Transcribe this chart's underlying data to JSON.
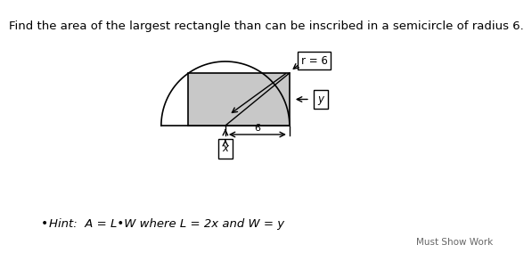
{
  "title": "Find the area of the largest rectangle than can be inscribed in a semicircle of radius 6.",
  "title_fontsize": 9.5,
  "hint_text": "Hint:  A = L•W where L = 2x and W = y",
  "hint_fontsize": 9.5,
  "watermark": "Must Show Work",
  "watermark_fontsize": 7.5,
  "background_color": "#ffffff",
  "rect_fill": "#c8c8c8",
  "rect_edge": "#000000",
  "label_r": "r = 6",
  "label_x": "x",
  "label_y": "y",
  "label_6": "6"
}
